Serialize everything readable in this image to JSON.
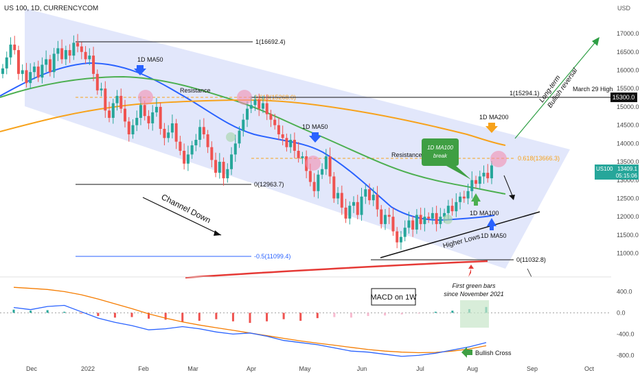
{
  "header": {
    "title": "US 100, 1D, CURRENCYCOM"
  },
  "currency": "USD",
  "colors": {
    "channel": "#dfe4fb",
    "bull": "#26a69a",
    "bear": "#ef5350",
    "ma50": "#2962ff",
    "ma100": "#4caf50",
    "ma200": "#f7a21b",
    "redline": "#e53935",
    "macd_line": "#2962ff",
    "signal_line": "#f57c00",
    "price_badge": "#26a69a"
  },
  "chart_data": [
    {
      "type": "candlestick",
      "yaxis": {
        "range": [
          10600,
          17450
        ],
        "ticks": [
          "17000.0",
          "16500.0",
          "16000.0",
          "15500.0",
          "15000.0",
          "14500.0",
          "14000.0",
          "13500.0",
          "13000.0",
          "12500.0",
          "12000.0",
          "11500.0",
          "11000.0"
        ]
      },
      "xaxis": {
        "labels": [
          "Dec",
          "2022",
          "Feb",
          "Mar",
          "Apr",
          "May",
          "Jun",
          "Jul",
          "Aug",
          "Sep",
          "Oct"
        ]
      },
      "last_price": {
        "value": "13409.1",
        "label": "US100",
        "countdown": "05:15:06"
      },
      "march_high_badge": "15300.0",
      "levels": [
        {
          "name": "fib-top",
          "label": "1(16692.4)",
          "value": 16692.4
        },
        {
          "name": "fib-618-a",
          "label": "0.618(15268.0)",
          "value": 15268.0
        },
        {
          "name": "fib-zero-a",
          "label": "0(12963.7)",
          "value": 12963.7
        },
        {
          "name": "fib-ext",
          "label": "-0.5(11099.4)",
          "value": 11099.4
        },
        {
          "name": "fib-top-b",
          "label": "1(15294.1)",
          "value": 15294.1
        },
        {
          "name": "fib-618-b",
          "label": "0.618(13666.3)",
          "value": 13666.3
        },
        {
          "name": "fib-zero-b",
          "label": "0(11032.8)",
          "value": 11032.8
        }
      ],
      "annotations": {
        "ma50_a": "1D MA50",
        "ma50_b": "1D MA50",
        "ma50_c": "1D MA50",
        "ma100": "1D MA100",
        "ma200": "1D MA200",
        "resistance_a": "Resistance",
        "resistance_b": "Resistance",
        "channel": "Channel Down",
        "higher_lows": "Higher Lows",
        "ma100_break": "1D MA100 break",
        "march_high": "March 29 High",
        "reversal_1": "Long-term",
        "reversal_2": "Bullish reversal"
      },
      "closes": [
        16050,
        16350,
        16700,
        16550,
        15900,
        16000,
        15650,
        15950,
        16100,
        15800,
        16150,
        16300,
        15950,
        16450,
        16600,
        16300,
        16550,
        16400,
        16750,
        16650,
        16500,
        16300,
        16400,
        15900,
        15450,
        15500,
        14900,
        14700,
        15100,
        15300,
        14950,
        14600,
        14250,
        14500,
        14700,
        15050,
        14750,
        14550,
        14850,
        15000,
        14400,
        14150,
        14300,
        14550,
        14050,
        13800,
        13450,
        13700,
        13950,
        14100,
        14450,
        14250,
        13900,
        13550,
        13200,
        13500,
        13050,
        13300,
        13700,
        14000,
        14350,
        14650,
        14950,
        15050,
        15200,
        14950,
        15100,
        14800,
        14650,
        14500,
        14250,
        14150,
        13900,
        14100,
        13800,
        13600,
        13650,
        13250,
        12950,
        12700,
        13150,
        13300,
        13650,
        13100,
        12500,
        12650,
        12250,
        11950,
        12300,
        12400,
        12050,
        12550,
        12750,
        12450,
        12600,
        12200,
        11800,
        12050,
        12000,
        11600,
        11300,
        11450,
        11700,
        11900,
        11650,
        12050,
        11800,
        12000,
        11950,
        12100,
        11800,
        12000,
        12100,
        12300,
        12150,
        12400,
        12550,
        12500,
        12700,
        13000,
        12900,
        13100,
        13200,
        13050,
        13400
      ],
      "macd": {
        "range": [
          -950,
          650
        ],
        "ticks": [
          "400.0",
          "0.0",
          "-400.0",
          "-800.0"
        ],
        "title": "MACD on 1W",
        "note_1": "First green bars",
        "note_2": "since November 2021",
        "cross_label": "Bullish Cross",
        "histogram": [
          60,
          40,
          50,
          20,
          -10,
          -60,
          -90,
          -80,
          -110,
          -130,
          -170,
          -150,
          -120,
          -160,
          -190,
          -160,
          -120,
          -150,
          -100,
          -80,
          -90,
          -60,
          -50,
          -30,
          -10,
          20,
          40,
          70,
          110
        ],
        "macd_line": [
          100,
          60,
          120,
          140,
          20,
          -100,
          -180,
          -240,
          -320,
          -300,
          -260,
          -300,
          -360,
          -400,
          -380,
          -440,
          -520,
          -560,
          -600,
          -660,
          -720,
          -740,
          -780,
          -820,
          -800,
          -760,
          -700,
          -640,
          -560
        ],
        "signal_line": [
          480,
          460,
          440,
          400,
          340,
          260,
          170,
          80,
          -20,
          -100,
          -170,
          -230,
          -280,
          -330,
          -380,
          -430,
          -480,
          -530,
          -570,
          -610,
          -650,
          -690,
          -720,
          -740,
          -750,
          -745,
          -720,
          -680,
          -620
        ]
      }
    }
  ]
}
